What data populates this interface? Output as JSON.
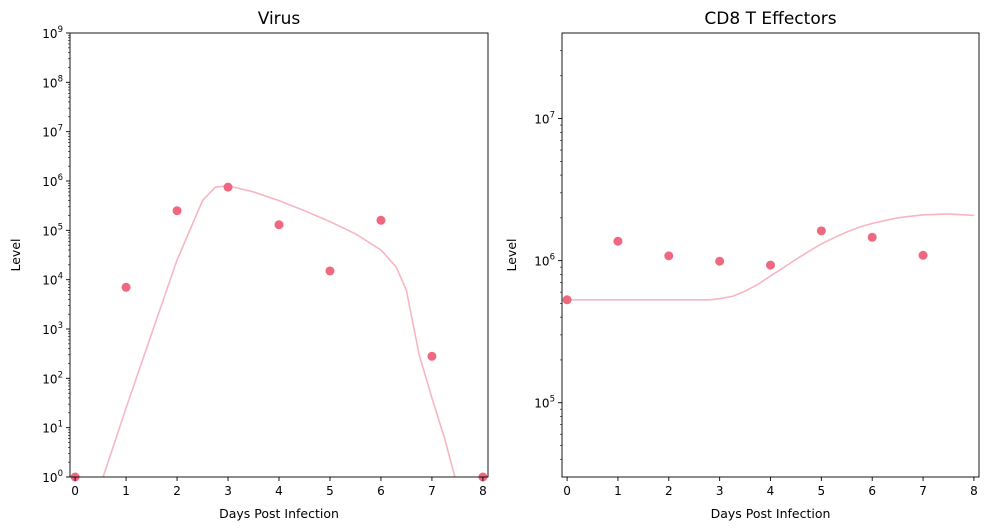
{
  "chart_data": [
    {
      "type": "scatter",
      "title": "Virus",
      "xlabel": "Days Post Infection",
      "ylabel": "Level",
      "yscale": "log",
      "xlim": [
        -0.1,
        8.1
      ],
      "ylim": [
        1,
        1000000000
      ],
      "xticks": [
        0,
        1,
        2,
        3,
        4,
        5,
        6,
        7,
        8
      ],
      "yticks": [
        {
          "v": 1,
          "mant": "10",
          "exp": "0"
        },
        {
          "v": 10,
          "mant": "10",
          "exp": "1"
        },
        {
          "v": 100,
          "mant": "10",
          "exp": "2"
        },
        {
          "v": 1000,
          "mant": "10",
          "exp": "3"
        },
        {
          "v": 10000,
          "mant": "10",
          "exp": "4"
        },
        {
          "v": 100000,
          "mant": "10",
          "exp": "5"
        },
        {
          "v": 1000000,
          "mant": "10",
          "exp": "6"
        },
        {
          "v": 10000000,
          "mant": "10",
          "exp": "7"
        },
        {
          "v": 100000000,
          "mant": "10",
          "exp": "8"
        },
        {
          "v": 1000000000,
          "mant": "10",
          "exp": "9"
        }
      ],
      "grid": false,
      "series": [
        {
          "kind": "points",
          "color": "#f0687f",
          "x": [
            0,
            1,
            2,
            3,
            4,
            5,
            6,
            7,
            8
          ],
          "y": [
            1,
            7000,
            250000,
            750000,
            130000,
            15000,
            160000,
            280,
            1
          ]
        },
        {
          "kind": "line",
          "color": "#f7b6c2",
          "x": [
            0.55,
            1.0,
            1.5,
            2.0,
            2.5,
            2.75,
            3.0,
            3.5,
            4.0,
            4.5,
            5.0,
            5.5,
            6.0,
            6.3,
            6.5,
            6.75,
            7.0,
            7.25,
            7.45
          ],
          "y": [
            1,
            25,
            800,
            25000,
            400000,
            750000,
            800000,
            600000,
            400000,
            250000,
            150000,
            85000,
            40000,
            18000,
            6000,
            300,
            40,
            6,
            1
          ]
        }
      ]
    },
    {
      "type": "scatter",
      "title": "CD8 T Effectors",
      "xlabel": "Days Post Infection",
      "ylabel": "Level",
      "yscale": "log",
      "xlim": [
        -0.1,
        8.1
      ],
      "ylim": [
        30000,
        40000000
      ],
      "xticks": [
        0,
        1,
        2,
        3,
        4,
        5,
        6,
        7,
        8
      ],
      "yticks": [
        {
          "v": 100000,
          "mant": "10",
          "exp": "5"
        },
        {
          "v": 1000000,
          "mant": "10",
          "exp": "6"
        },
        {
          "v": 10000000,
          "mant": "10",
          "exp": "7"
        }
      ],
      "grid": false,
      "series": [
        {
          "kind": "points",
          "color": "#f0687f",
          "x": [
            0,
            1,
            2,
            3,
            4,
            5,
            6,
            7
          ],
          "y": [
            530000,
            1370000,
            1080000,
            990000,
            930000,
            1620000,
            1460000,
            1090000
          ]
        },
        {
          "kind": "line",
          "color": "#f7b6c2",
          "x": [
            0,
            0.5,
            1,
            1.5,
            2,
            2.5,
            2.8,
            3.0,
            3.25,
            3.5,
            3.75,
            4.0,
            4.25,
            4.5,
            4.75,
            5.0,
            5.25,
            5.5,
            5.75,
            6.0,
            6.5,
            7.0,
            7.5,
            8.0
          ],
          "y": [
            530000,
            530000,
            530000,
            530000,
            530000,
            530000,
            530000,
            540000,
            560000,
            610000,
            680000,
            780000,
            890000,
            1020000,
            1160000,
            1310000,
            1450000,
            1590000,
            1720000,
            1830000,
            2000000,
            2100000,
            2130000,
            2080000
          ]
        }
      ]
    }
  ]
}
